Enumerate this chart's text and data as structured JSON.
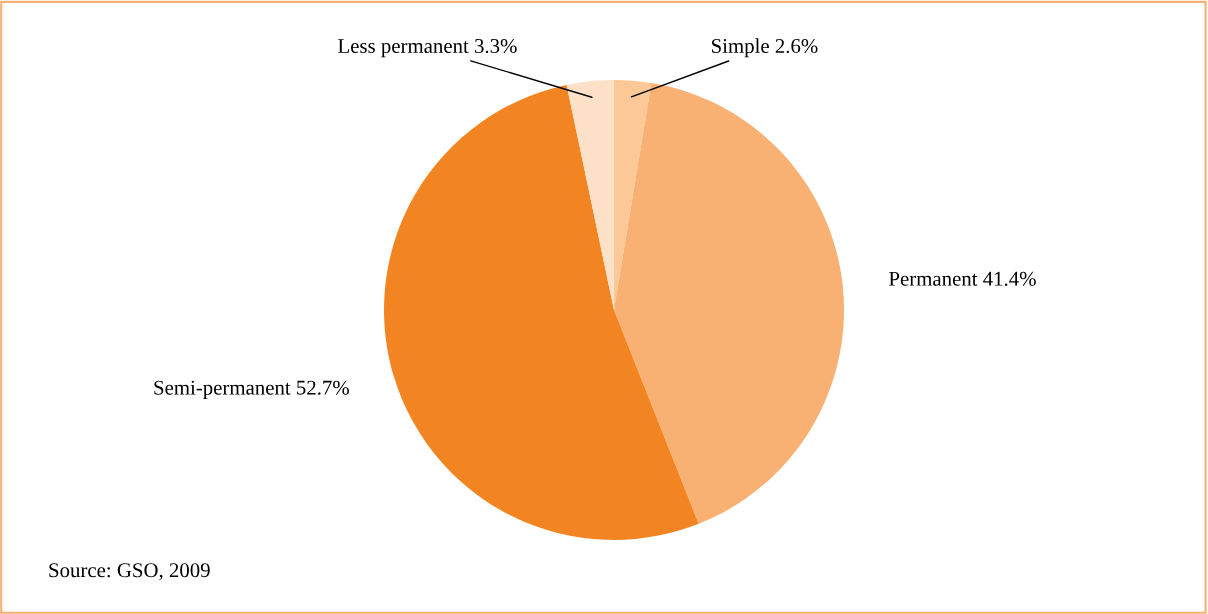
{
  "chart_data": {
    "type": "pie",
    "categories": [
      "Simple",
      "Permanent",
      "Semi-permanent",
      "Less permanent"
    ],
    "values": [
      2.6,
      41.4,
      52.7,
      3.3
    ],
    "value_labels": [
      "2.6%",
      "41.4%",
      "52.7%",
      "3.3%"
    ],
    "colors": [
      "#fdc898",
      "#f9b073",
      "#f28522",
      "#fde0c8"
    ],
    "annotations": [
      "Source: GSO, 2009"
    ],
    "legend": false
  }
}
